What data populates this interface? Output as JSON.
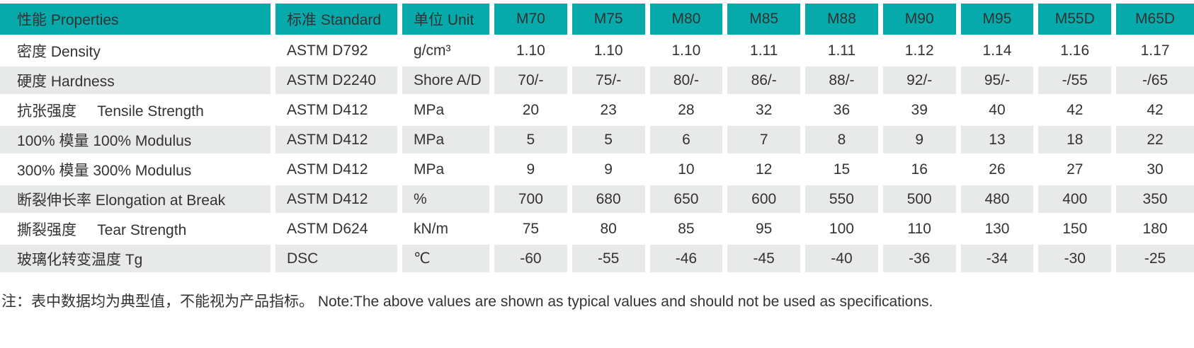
{
  "theme": {
    "header_bg": "#06aaab",
    "row_alt_bg": "#e8e9e9",
    "text_color": "#333333",
    "page_bg": "#ffffff"
  },
  "table": {
    "columns": [
      {
        "label": "性能 Properties",
        "key": "properties",
        "align": "left"
      },
      {
        "label": "标准 Standard",
        "key": "standard",
        "align": "left"
      },
      {
        "label": "单位 Unit",
        "key": "unit",
        "align": "left"
      },
      {
        "label": "M70",
        "key": "m70",
        "align": "center"
      },
      {
        "label": "M75",
        "key": "m75",
        "align": "center"
      },
      {
        "label": "M80",
        "key": "m80",
        "align": "center"
      },
      {
        "label": "M85",
        "key": "m85",
        "align": "center"
      },
      {
        "label": "M88",
        "key": "m88",
        "align": "center"
      },
      {
        "label": "M90",
        "key": "m90",
        "align": "center"
      },
      {
        "label": "M95",
        "key": "m95",
        "align": "center"
      },
      {
        "label": "M55D",
        "key": "m55d",
        "align": "center"
      },
      {
        "label": "M65D",
        "key": "m65d",
        "align": "center"
      }
    ],
    "rows": [
      {
        "key": "density",
        "property": "密度 Density",
        "standard": "ASTM D792",
        "unit": "g/cm³",
        "values": [
          "1.10",
          "1.10",
          "1.10",
          "1.11",
          "1.11",
          "1.12",
          "1.14",
          "1.16",
          "1.17"
        ]
      },
      {
        "key": "hardness",
        "property": "硬度 Hardness",
        "standard": "ASTM D2240",
        "unit": "Shore A/D",
        "values": [
          "70/-",
          "75/-",
          "80/-",
          "86/-",
          "88/-",
          "92/-",
          "95/-",
          "-/55",
          "-/65"
        ]
      },
      {
        "key": "tensile-strength",
        "property": "抗张强度     Tensile Strength",
        "standard": "ASTM D412",
        "unit": "MPa",
        "values": [
          "20",
          "23",
          "28",
          "32",
          "36",
          "39",
          "40",
          "42",
          "42"
        ]
      },
      {
        "key": "modulus-100",
        "property": "100% 模量 100% Modulus",
        "standard": "ASTM D412",
        "unit": "MPa",
        "values": [
          "5",
          "5",
          "6",
          "7",
          "8",
          "9",
          "13",
          "18",
          "22"
        ]
      },
      {
        "key": "modulus-300",
        "property": "300% 模量 300% Modulus",
        "standard": "ASTM D412",
        "unit": "MPa",
        "values": [
          "9",
          "9",
          "10",
          "12",
          "15",
          "16",
          "26",
          "27",
          "30"
        ]
      },
      {
        "key": "elongation-at-break",
        "property": "断裂伸长率 Elongation at Break",
        "standard": "ASTM D412",
        "unit": "%",
        "values": [
          "700",
          "680",
          "650",
          "600",
          "550",
          "500",
          "480",
          "400",
          "350"
        ]
      },
      {
        "key": "tear-strength",
        "property": "撕裂强度     Tear Strength",
        "standard": "ASTM D624",
        "unit": "kN/m",
        "values": [
          "75",
          "80",
          "85",
          "95",
          "100",
          "110",
          "130",
          "150",
          "180"
        ]
      },
      {
        "key": "tg",
        "property": "玻璃化转变温度 Tg",
        "standard": "DSC",
        "unit": "℃",
        "values": [
          "-60",
          "-55",
          "-46",
          "-45",
          "-40",
          "-36",
          "-34",
          "-30",
          "-25"
        ]
      }
    ]
  },
  "footnote": "注：表中数据均为典型值，不能视为产品指标。 Note:The above values are shown as typical values and should not be used as specifications."
}
